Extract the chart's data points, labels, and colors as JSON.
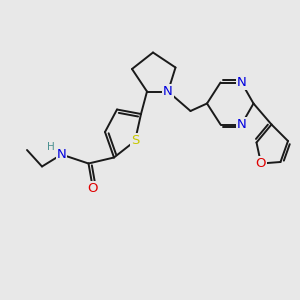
{
  "bg_color": "#e8e8e8",
  "bond_color": "#1a1a1a",
  "bond_width": 1.4,
  "atom_colors": {
    "S": "#c8c800",
    "N": "#0000e0",
    "O": "#e00000",
    "H": "#4a9090",
    "C": "#1a1a1a"
  },
  "font_size": 8.5,
  "figsize": [
    3.0,
    3.0
  ],
  "dpi": 100
}
